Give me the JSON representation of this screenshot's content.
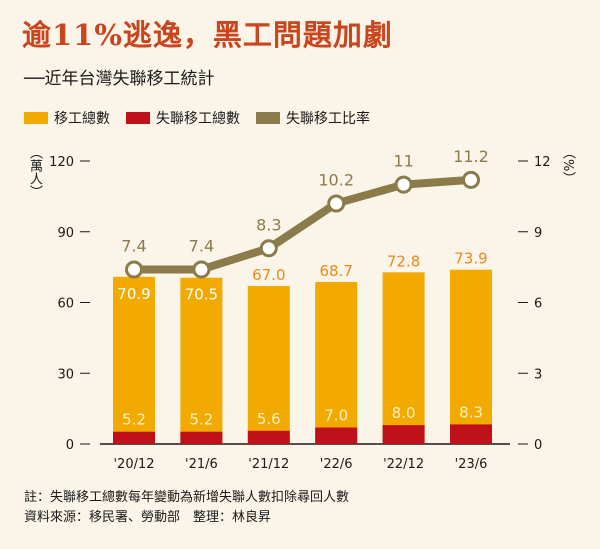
{
  "title": "逾11%逃逸，黑工問題加劇",
  "subtitle": "──近年台灣失聯移工統計",
  "legend": {
    "total": "移工總數",
    "missing": "失聯移工總數",
    "ratio": "失聯移工比率"
  },
  "units": {
    "left": "（萬人）",
    "right": "（%）"
  },
  "colors": {
    "total": "#f2a900",
    "missing": "#c0111a",
    "ratio": "#8b7b4a",
    "total_label": "#e98a1a",
    "missing_label": "#fff1c0",
    "ratio_label": "#8b7b4a"
  },
  "notes": {
    "line1": "註：失聯移工總數每年變動為新增失聯人數扣除尋回人數",
    "line2": "資料來源：移民署、勞動部　整理：林良昇"
  },
  "chart_data": {
    "type": "bar",
    "categories": [
      "'20/12",
      "'21/6",
      "'21/12",
      "'22/6",
      "'22/12",
      "'23/6"
    ],
    "series": [
      {
        "name": "移工總數",
        "type": "bar",
        "axis": "left",
        "values": [
          70.9,
          70.5,
          67.0,
          68.7,
          72.8,
          73.9
        ],
        "labels": [
          "70.9",
          "70.5",
          "67.0",
          "68.7",
          "72.8",
          "73.9"
        ]
      },
      {
        "name": "失聯移工總數",
        "type": "bar",
        "axis": "left",
        "values": [
          5.2,
          5.2,
          5.6,
          7.0,
          8.0,
          8.3
        ],
        "labels": [
          "5.2",
          "5.2",
          "5.6",
          "7.0",
          "8.0",
          "8.3"
        ]
      },
      {
        "name": "失聯移工比率",
        "type": "line",
        "axis": "right",
        "values": [
          7.4,
          7.4,
          8.3,
          10.2,
          11,
          11.2
        ],
        "labels": [
          "7.4",
          "7.4",
          "8.3",
          "10.2",
          "11",
          "11.2"
        ]
      }
    ],
    "y_left": {
      "ticks": [
        "0",
        "30",
        "60",
        "90",
        "120"
      ],
      "range": [
        0,
        120
      ]
    },
    "y_right": {
      "ticks": [
        "0",
        "3",
        "6",
        "9",
        "12"
      ],
      "range": [
        0,
        12
      ]
    },
    "grid": false,
    "legend": "top-left"
  }
}
